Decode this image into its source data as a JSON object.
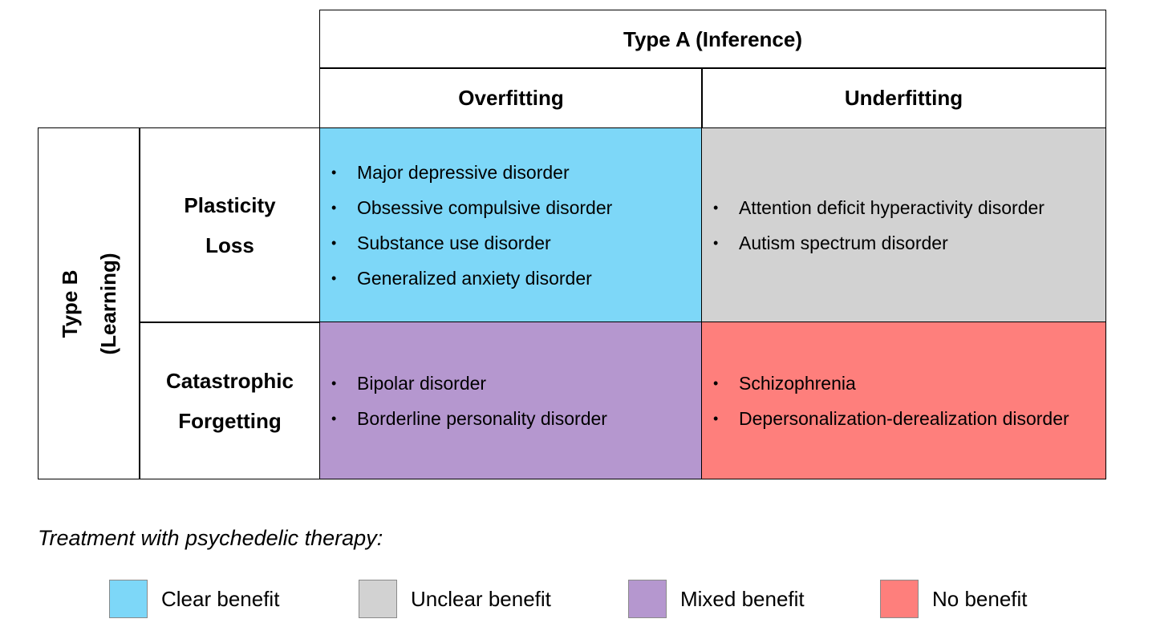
{
  "colors": {
    "clear": "#7dd7f8",
    "unclear": "#d2d2d2",
    "mixed": "#b597cf",
    "none": "#fe7f7c"
  },
  "type_a": {
    "title": "Type A (Inference)",
    "columns": [
      "Overfitting",
      "Underfitting"
    ]
  },
  "type_b": {
    "line1": "Type B",
    "line2": "(Learning)",
    "rows": [
      {
        "line1": "Plasticity",
        "line2": "Loss"
      },
      {
        "line1": "Catastrophic",
        "line2": "Forgetting"
      }
    ]
  },
  "cells": {
    "plasticity_overfitting": [
      "Major depressive disorder",
      "Obsessive compulsive disorder",
      "Substance use disorder",
      "Generalized anxiety disorder"
    ],
    "plasticity_underfitting": [
      "Attention deficit hyperactivity disorder",
      "Autism spectrum disorder"
    ],
    "forgetting_overfitting": [
      "Bipolar disorder",
      "Borderline personality disorder"
    ],
    "forgetting_underfitting": [
      "Schizophrenia",
      "Depersonalization-derealization disorder"
    ]
  },
  "bullet": "•",
  "legend": {
    "caption": "Treatment with psychedelic therapy:",
    "items": [
      "Clear benefit",
      "Unclear benefit",
      "Mixed benefit",
      "No benefit"
    ]
  }
}
